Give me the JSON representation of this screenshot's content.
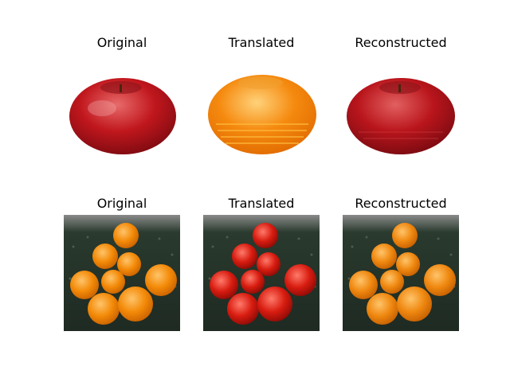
{
  "rows": [
    {
      "subject": "apple",
      "panels": [
        {
          "title": "Original",
          "fruit_color": "#c0171d",
          "highlight": "#e86a6a"
        },
        {
          "title": "Translated",
          "fruit_color": "#f58a0f",
          "highlight": "#ffd27a"
        },
        {
          "title": "Reconstructed",
          "fruit_color": "#b9151c",
          "highlight": "#e26060"
        }
      ]
    },
    {
      "subject": "oranges",
      "panels": [
        {
          "title": "Original",
          "fruit_color": "#f38a08",
          "highlight": "#ffc46a"
        },
        {
          "title": "Translated",
          "fruit_color": "#d81c10",
          "highlight": "#ff7a6a"
        },
        {
          "title": "Reconstructed",
          "fruit_color": "#ef8810",
          "highlight": "#ffc46a"
        }
      ]
    }
  ],
  "colors": {
    "background": "#ffffff",
    "text": "#000000",
    "orange_bg_top": "#8a8a8a",
    "orange_bg_bottom": "#1e2a22"
  }
}
